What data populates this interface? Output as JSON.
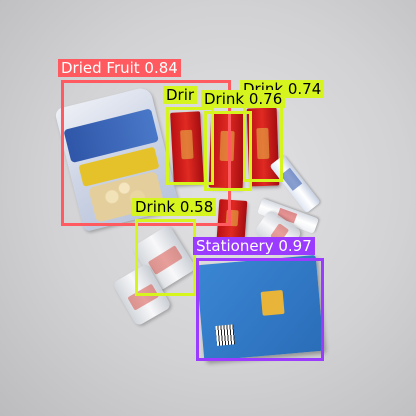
{
  "image": {
    "description_colors": {
      "background": "#d2d2d4"
    }
  },
  "detections": [
    {
      "label": "Dried Fruit 0.84",
      "color": "#ff5a5f",
      "text_color": "#ffffff"
    },
    {
      "label": "Drink 0.74",
      "color": "#d6f51f",
      "text_color": "#000000"
    },
    {
      "label": "Drink 0.76",
      "color": "#d6f51f",
      "text_color": "#000000"
    },
    {
      "label": "Drir",
      "color": "#d6f51f",
      "text_color": "#000000"
    },
    {
      "label": "Drink 0.58",
      "color": "#d6f51f",
      "text_color": "#000000"
    },
    {
      "label": "Stationery 0.97",
      "color": "#9b3bff",
      "text_color": "#ffffff"
    }
  ]
}
